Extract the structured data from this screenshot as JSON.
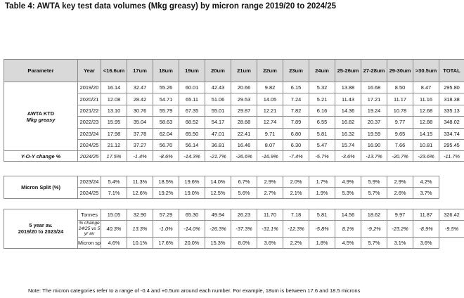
{
  "title": "Table 4: AWTA key test data volumes (Mkg greasy) by micron range 2019/20 to 2024/25",
  "headers": [
    "Parameter",
    "Year",
    "<16.6um",
    "17um",
    "18um",
    "19um",
    "20um",
    "21um",
    "22um",
    "23um",
    "24um",
    "25-26um",
    "27-28um",
    "29-30um",
    ">30.5um",
    "TOTAL"
  ],
  "awta": {
    "label": "AWTA KTD",
    "sublabel": "Mkg greasy",
    "rows": [
      {
        "year": "2019/20",
        "values": [
          "16.14",
          "32.47",
          "55.26",
          "60.01",
          "42.43",
          "20.66",
          "9.82",
          "6.15",
          "5.32",
          "13.88",
          "16.68",
          "8.50",
          "8.47",
          "295.80"
        ]
      },
      {
        "year": "2020/21",
        "values": [
          "12.08",
          "28.42",
          "54.71",
          "65.11",
          "51.06",
          "29.53",
          "14.05",
          "7.24",
          "5.21",
          "11.43",
          "17.21",
          "11.17",
          "11.16",
          "318.38"
        ]
      },
      {
        "year": "2021/22",
        "values": [
          "13.10",
          "30.76",
          "55.79",
          "67.35",
          "55.01",
          "29.87",
          "12.21",
          "7.82",
          "6.16",
          "14.36",
          "19.24",
          "10.78",
          "12.68",
          "335.13"
        ]
      },
      {
        "year": "2022/23",
        "values": [
          "15.95",
          "35.04",
          "58.63",
          "68.52",
          "54.17",
          "28.68",
          "12.74",
          "7.89",
          "6.55",
          "16.82",
          "20.37",
          "9.77",
          "12.88",
          "348.02"
        ]
      },
      {
        "year": "2023/24",
        "values": [
          "17.98",
          "37.78",
          "62.04",
          "65.50",
          "47.01",
          "22.41",
          "9.71",
          "6.80",
          "5.81",
          "16.32",
          "19.59",
          "9.65",
          "14.15",
          "334.74"
        ]
      },
      {
        "year": "2024/25",
        "values": [
          "21.12",
          "37.27",
          "56.70",
          "56.14",
          "36.81",
          "16.46",
          "8.07",
          "6.30",
          "5.47",
          "15.74",
          "16.90",
          "7.66",
          "10.81",
          "295.45"
        ]
      }
    ],
    "yoy": {
      "label": "Y-O-Y change %",
      "year": "2024/25",
      "values": [
        "17.5%",
        "-1.4%",
        "-8.6%",
        "-14.3%",
        "-21.7%",
        "-26.6%",
        "-16.9%",
        "-7.4%",
        "-5.7%",
        "-3.6%",
        "-13.7%",
        "-20.7%",
        "-23.6%",
        "-11.7%"
      ]
    }
  },
  "split": {
    "label": "Micron Split (%)",
    "rows": [
      {
        "year": "2023/24",
        "values": [
          "5.4%",
          "11.3%",
          "18.5%",
          "19.6%",
          "14.0%",
          "6.7%",
          "2.9%",
          "2.0%",
          "1.7%",
          "4.9%",
          "5.9%",
          "2.9%",
          "4.2%"
        ]
      },
      {
        "year": "2024/25",
        "values": [
          "7.1%",
          "12.6%",
          "19.2%",
          "19.0%",
          "12.5%",
          "5.6%",
          "2.7%",
          "2.1%",
          "1.9%",
          "5.3%",
          "5.7%",
          "2.6%",
          "3.7%"
        ]
      }
    ]
  },
  "five_year": {
    "label_line1": "5 year av.",
    "label_line2": "2019/20 to 2023/24",
    "tonnes": {
      "label": "Tonnes",
      "values": [
        "15.05",
        "32.90",
        "57.29",
        "65.30",
        "49.94",
        "26.23",
        "11.70",
        "7.18",
        "5.81",
        "14.56",
        "18.62",
        "9.97",
        "11.87",
        "326.42"
      ]
    },
    "change": {
      "label_line1": "% change",
      "label_line2": "24/25 vs 5 yr av",
      "values": [
        "40.3%",
        "13.3%",
        "-1.0%",
        "-14.0%",
        "-26.3%",
        "-37.3%",
        "-31.1%",
        "-12.3%",
        "-5.8%",
        "8.1%",
        "-9.2%",
        "-23.2%",
        "-8.9%",
        "-9.5%"
      ]
    },
    "split": {
      "label": "Micron split %",
      "values": [
        "4.6%",
        "10.1%",
        "17.6%",
        "20.0%",
        "15.3%",
        "8.0%",
        "3.6%",
        "2.2%",
        "1.8%",
        "4.5%",
        "5.7%",
        "3.1%",
        "3.6%"
      ]
    }
  },
  "note": "Note: The micron categories refer to a range of -0.4 and +0.5um around each number. For example, 18um is between 17.6 and 18.5 microns"
}
